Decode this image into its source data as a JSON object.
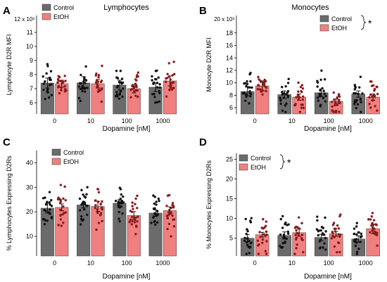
{
  "figure": {
    "x_axis_title": "Dopamine [nM]",
    "legend_labels": [
      "Control",
      "EtOH"
    ],
    "colors": {
      "control": "#6b6b6b",
      "etoh": "#f08080",
      "point": "#111111",
      "etoh_point": "#8b1a1a",
      "err": "#000000"
    }
  },
  "chart_data": [
    {
      "panel": "A",
      "type": "bar",
      "title": "Lymphocytes",
      "ylabel": "Lymphocyte D2R MFI",
      "y_multiplier_label": "12 x 10³",
      "yticks": [
        "6",
        "7",
        "8",
        "9",
        "10",
        "11"
      ],
      "ylim": [
        5.2,
        12.2
      ],
      "categories": [
        "0",
        "10",
        "100",
        "1000"
      ],
      "series": [
        {
          "name": "Control",
          "values": [
            7.4,
            7.4,
            7.25,
            7.1
          ],
          "sem": [
            0.35,
            0.45,
            0.35,
            0.3
          ]
        },
        {
          "name": "EtOH",
          "values": [
            7.35,
            7.35,
            7.0,
            7.55
          ],
          "sem": [
            0.25,
            0.3,
            0.3,
            0.35
          ]
        }
      ],
      "significance": ""
    },
    {
      "panel": "B",
      "type": "bar",
      "title": "Monocytes",
      "ylabel": "Monocyte D2R MFI",
      "y_multiplier_label": "20 x 10³",
      "yticks": [
        "6",
        "8",
        "10",
        "12",
        "14",
        "16",
        "18"
      ],
      "ylim": [
        5.0,
        20.8
      ],
      "categories": [
        "0",
        "10",
        "100",
        "1000"
      ],
      "series": [
        {
          "name": "Control",
          "values": [
            8.6,
            8.1,
            8.4,
            8.2
          ],
          "sem": [
            0.7,
            0.6,
            0.6,
            0.5
          ]
        },
        {
          "name": "EtOH",
          "values": [
            9.5,
            7.7,
            7.0,
            7.7
          ],
          "sem": [
            0.8,
            0.5,
            0.4,
            0.5
          ]
        }
      ],
      "significance": "*"
    },
    {
      "panel": "C",
      "type": "bar",
      "title": "",
      "ylabel": "% Lymphocytes Expressing D2Rs",
      "y_multiplier_label": "",
      "yticks": [
        "10",
        "20",
        "30",
        "40"
      ],
      "ylim": [
        2,
        45
      ],
      "categories": [
        "0",
        "10",
        "100",
        "1000"
      ],
      "series": [
        {
          "name": "Control",
          "values": [
            21.5,
            22.8,
            23.5,
            19.5
          ],
          "sem": [
            2.0,
            1.2,
            1.5,
            1.3
          ]
        },
        {
          "name": "EtOH",
          "values": [
            21.8,
            22.2,
            18.5,
            20.5
          ],
          "sem": [
            1.4,
            2.1,
            1.6,
            1.5
          ]
        }
      ],
      "significance": ""
    },
    {
      "panel": "D",
      "type": "bar",
      "title": "",
      "ylabel": "% Monocytes Expressing D2Rs",
      "y_multiplier_label": "",
      "yticks": [
        "5",
        "10",
        "15",
        "20",
        "25"
      ],
      "ylim": [
        0.5,
        26.5
      ],
      "categories": [
        "0",
        "10",
        "100",
        "1000"
      ],
      "series": [
        {
          "name": "Control",
          "values": [
            5.0,
            5.7,
            5.2,
            4.8
          ],
          "sem": [
            0.9,
            0.9,
            0.8,
            0.8
          ]
        },
        {
          "name": "EtOH",
          "values": [
            5.9,
            6.4,
            6.1,
            7.4
          ],
          "sem": [
            0.6,
            0.9,
            0.6,
            1.2
          ]
        }
      ],
      "significance": "*"
    }
  ]
}
